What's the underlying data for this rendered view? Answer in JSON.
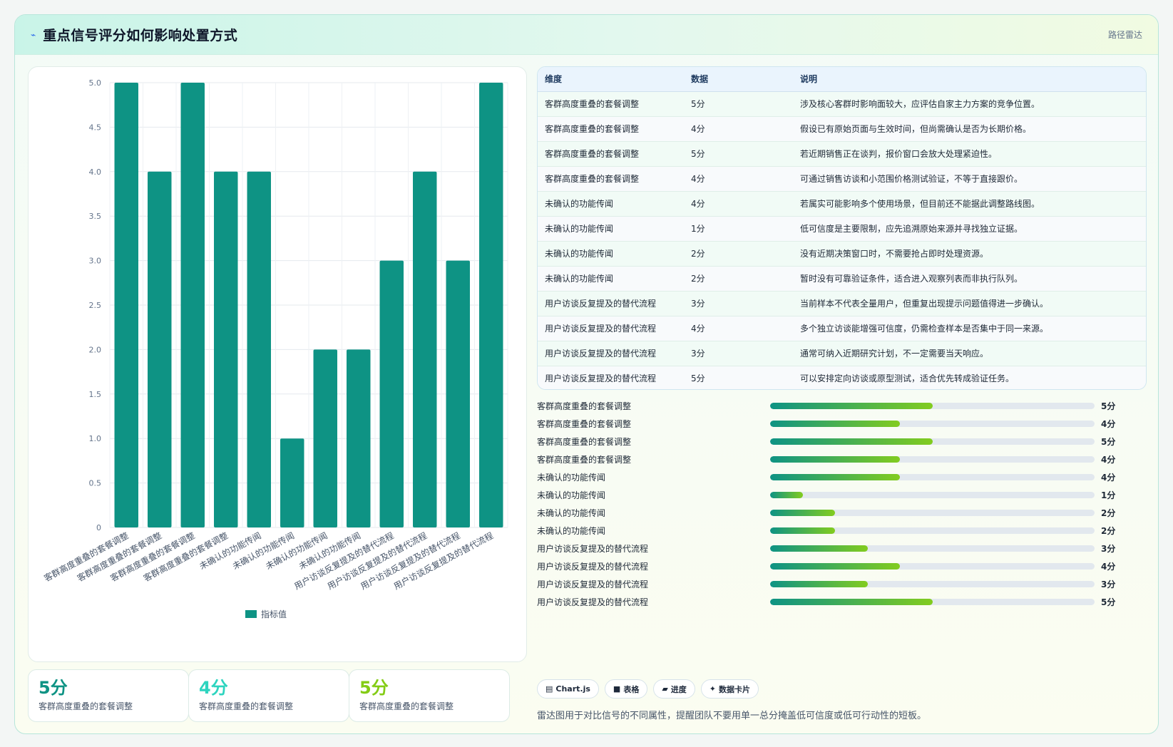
{
  "header": {
    "icon": "pulse-icon",
    "title": "重点信号评分如何影响处置方式",
    "right_label": "路径雷达"
  },
  "chart_data": {
    "type": "bar",
    "categories": [
      "客群高度重叠的套餐调整",
      "客群高度重叠的套餐调整",
      "客群高度重叠的套餐调整",
      "客群高度重叠的套餐调整",
      "未确认的功能传闻",
      "未确认的功能传闻",
      "未确认的功能传闻",
      "未确认的功能传闻",
      "用户访谈反复提及的替代流程",
      "用户访谈反复提及的替代流程",
      "用户访谈反复提及的替代流程",
      "用户访谈反复提及的替代流程"
    ],
    "series": [
      {
        "name": "指标值",
        "values": [
          5,
          4,
          5,
          4,
          4,
          1,
          2,
          2,
          3,
          4,
          3,
          5
        ]
      }
    ],
    "ylim": [
      0,
      5
    ],
    "yticks": [
      "0",
      "0.5",
      "1.0",
      "1.5",
      "2.0",
      "2.5",
      "3.0",
      "3.5",
      "4.0",
      "4.5",
      "5.0"
    ],
    "grid": true,
    "legend": "bottom",
    "color": "#0e9384"
  },
  "table": {
    "headers": [
      "维度",
      "数据",
      "说明"
    ],
    "rows": [
      [
        "客群高度重叠的套餐调整",
        "5分",
        "涉及核心客群时影响面较大，应评估自家主力方案的竞争位置。"
      ],
      [
        "客群高度重叠的套餐调整",
        "4分",
        "假设已有原始页面与生效时间，但尚需确认是否为长期价格。"
      ],
      [
        "客群高度重叠的套餐调整",
        "5分",
        "若近期销售正在谈判，报价窗口会放大处理紧迫性。"
      ],
      [
        "客群高度重叠的套餐调整",
        "4分",
        "可通过销售访谈和小范围价格测试验证，不等于直接跟价。"
      ],
      [
        "未确认的功能传闻",
        "4分",
        "若属实可能影响多个使用场景，但目前还不能据此调整路线图。"
      ],
      [
        "未确认的功能传闻",
        "1分",
        "低可信度是主要限制，应先追溯原始来源并寻找独立证据。"
      ],
      [
        "未确认的功能传闻",
        "2分",
        "没有近期决策窗口时，不需要抢占即时处理资源。"
      ],
      [
        "未确认的功能传闻",
        "2分",
        "暂时没有可靠验证条件，适合进入观察列表而非执行队列。"
      ],
      [
        "用户访谈反复提及的替代流程",
        "3分",
        "当前样本不代表全量用户，但重复出现提示问题值得进一步确认。"
      ],
      [
        "用户访谈反复提及的替代流程",
        "4分",
        "多个独立访谈能增强可信度，仍需检查样本是否集中于同一来源。"
      ],
      [
        "用户访谈反复提及的替代流程",
        "3分",
        "通常可纳入近期研究计划，不一定需要当天响应。"
      ],
      [
        "用户访谈反复提及的替代流程",
        "5分",
        "可以安排定向访谈或原型测试，适合优先转成验证任务。"
      ]
    ]
  },
  "progress": {
    "max": 5,
    "items": [
      {
        "label": "客群高度重叠的套餐调整",
        "value": 5,
        "text": "5分"
      },
      {
        "label": "客群高度重叠的套餐调整",
        "value": 4,
        "text": "4分"
      },
      {
        "label": "客群高度重叠的套餐调整",
        "value": 5,
        "text": "5分"
      },
      {
        "label": "客群高度重叠的套餐调整",
        "value": 4,
        "text": "4分"
      },
      {
        "label": "未确认的功能传闻",
        "value": 4,
        "text": "4分"
      },
      {
        "label": "未确认的功能传闻",
        "value": 1,
        "text": "1分"
      },
      {
        "label": "未确认的功能传闻",
        "value": 2,
        "text": "2分"
      },
      {
        "label": "未确认的功能传闻",
        "value": 2,
        "text": "2分"
      },
      {
        "label": "用户访谈反复提及的替代流程",
        "value": 3,
        "text": "3分"
      },
      {
        "label": "用户访谈反复提及的替代流程",
        "value": 4,
        "text": "4分"
      },
      {
        "label": "用户访谈反复提及的替代流程",
        "value": 3,
        "text": "3分"
      },
      {
        "label": "用户访谈反复提及的替代流程",
        "value": 5,
        "text": "5分"
      }
    ]
  },
  "stats": [
    {
      "value": "5分",
      "label": "客群高度重叠的套餐调整",
      "color": "#0e9384"
    },
    {
      "value": "4分",
      "label": "客群高度重叠的套餐调整",
      "color": "#2dd4bf"
    },
    {
      "value": "5分",
      "label": "客群高度重叠的套餐调整",
      "color": "#84cc16"
    }
  ],
  "tags": [
    {
      "icon": "chart-icon",
      "label": "Chart.js"
    },
    {
      "icon": "table-icon",
      "label": "表格"
    },
    {
      "icon": "progress-icon",
      "label": "进度"
    },
    {
      "icon": "sparkle-icon",
      "label": "数据卡片"
    }
  ],
  "note": "雷达图用于对比信号的不同属性，提醒团队不要用单一总分掩盖低可信度或低可行动性的短板。"
}
